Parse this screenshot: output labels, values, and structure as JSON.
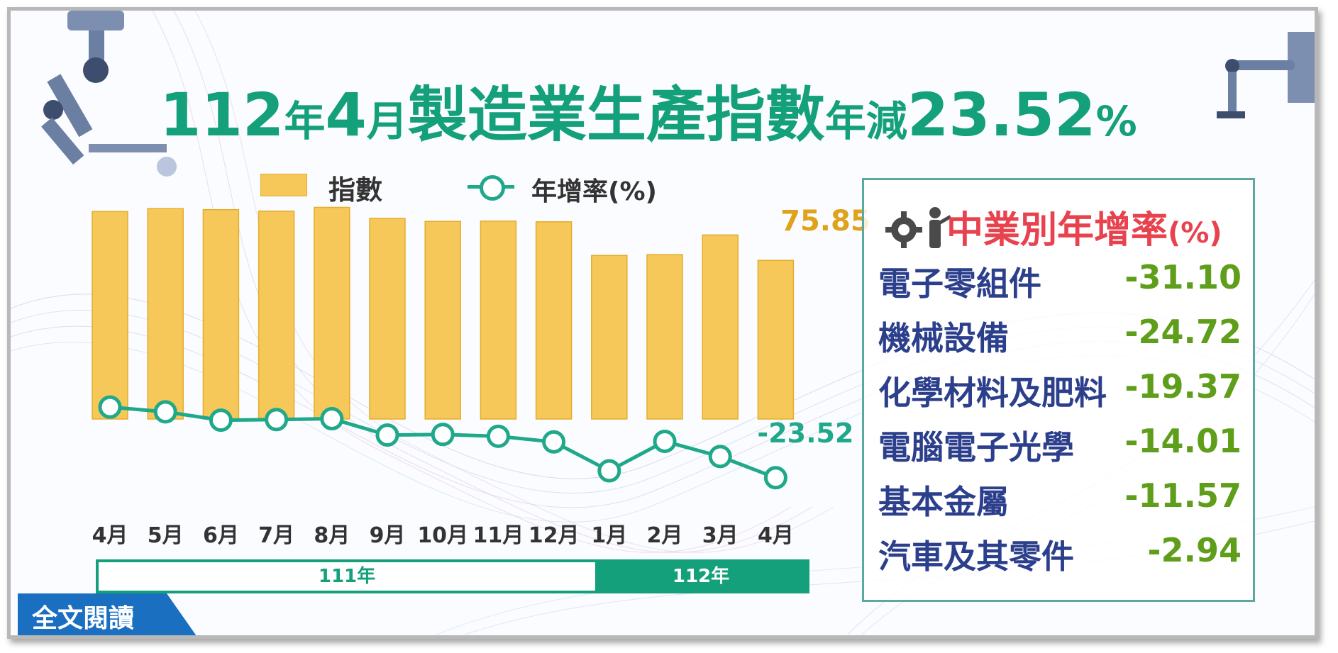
{
  "title": {
    "p1": "112",
    "p2": "年",
    "p3": "4",
    "p4": "月",
    "p5": "製造業生產指數",
    "p6": "年減",
    "p7": "23.52",
    "p8": "%"
  },
  "legend": {
    "index_label": "指數",
    "growth_label": "年增率(%)"
  },
  "chart_data": {
    "type": "bar",
    "categories": [
      "4月",
      "5月",
      "6月",
      "7月",
      "8月",
      "9月",
      "10月",
      "11月",
      "12月",
      "1月",
      "2月",
      "3月",
      "4月"
    ],
    "series": [
      {
        "name": "指數",
        "type": "bar",
        "values": [
          99.2,
          100.6,
          100.1,
          99.4,
          101.2,
          95.9,
          94.5,
          94.6,
          94.3,
          78.2,
          78.6,
          88.0,
          75.85
        ]
      },
      {
        "name": "年增率(%)",
        "type": "line",
        "values": [
          0.2,
          -1.4,
          -4.2,
          -4.0,
          -3.7,
          -9.2,
          -9.0,
          -9.6,
          -11.5,
          -21.2,
          -11.3,
          -16.4,
          -23.52
        ]
      }
    ],
    "labels": {
      "last_index": "75.85",
      "last_growth": "-23.52"
    },
    "year_groups": [
      {
        "label": "111年"
      },
      {
        "label": "112年"
      }
    ]
  },
  "panel": {
    "title": "中業別年增率",
    "title_unit": "(%)",
    "rows": [
      {
        "name": "電子零組件",
        "value": "-31.10"
      },
      {
        "name": "機械設備",
        "value": "-24.72"
      },
      {
        "name": "化學材料及肥料",
        "value": "-19.37"
      },
      {
        "name": "電腦電子光學",
        "value": "-14.01"
      },
      {
        "name": "基本金屬",
        "value": "-11.57"
      },
      {
        "name": "汽車及其零件",
        "value": "-2.94"
      }
    ]
  },
  "button": {
    "label": "全文閱讀"
  },
  "colors": {
    "title": "#13a07a",
    "bar": "#f6c85a",
    "line": "#1fa88a",
    "panel_title": "#e8424e",
    "panel_name": "#2c3f8c",
    "panel_value": "#5f9e1a",
    "button": "#1a6fc1",
    "index_label": "#e0a21a"
  }
}
